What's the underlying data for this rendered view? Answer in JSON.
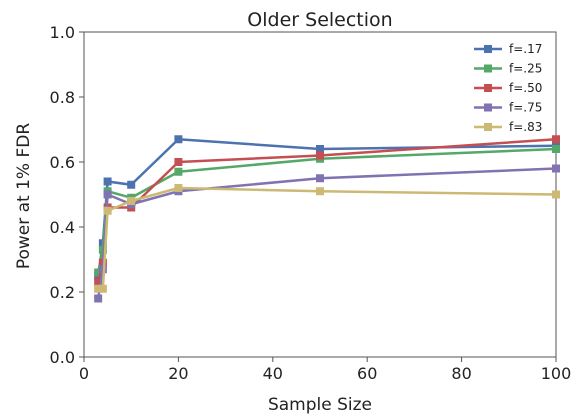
{
  "chart_data": {
    "type": "line",
    "title": "Older Selection",
    "xlabel": "Sample Size",
    "ylabel": "Power at 1% FDR",
    "xlim": [
      0,
      100
    ],
    "ylim": [
      0.0,
      1.0
    ],
    "xticks": [
      0,
      20,
      40,
      60,
      80,
      100
    ],
    "xtick_labels": [
      "0",
      "20",
      "40",
      "60",
      "80",
      "100"
    ],
    "yticks": [
      0.0,
      0.2,
      0.4,
      0.6,
      0.8,
      1.0
    ],
    "ytick_labels": [
      "0.0",
      "0.2",
      "0.4",
      "0.6",
      "0.8",
      "1.0"
    ],
    "grid": false,
    "legend_position": "top-right",
    "series": [
      {
        "name": "f=.17",
        "color": "#4c72b0",
        "points": [
          [
            3,
            0.25
          ],
          [
            4,
            0.35
          ],
          [
            5,
            0.54
          ],
          [
            10,
            0.53
          ],
          [
            20,
            0.67
          ],
          [
            50,
            0.64
          ],
          [
            100,
            0.65
          ]
        ]
      },
      {
        "name": "f=.25",
        "color": "#55a868",
        "points": [
          [
            3,
            0.26
          ],
          [
            4,
            0.33
          ],
          [
            5,
            0.51
          ],
          [
            10,
            0.49
          ],
          [
            20,
            0.57
          ],
          [
            50,
            0.61
          ],
          [
            100,
            0.64
          ]
        ]
      },
      {
        "name": "f=.50",
        "color": "#c44e52",
        "points": [
          [
            3,
            0.23
          ],
          [
            4,
            0.29
          ],
          [
            5,
            0.46
          ],
          [
            10,
            0.46
          ],
          [
            20,
            0.6
          ],
          [
            50,
            0.62
          ],
          [
            100,
            0.67
          ]
        ]
      },
      {
        "name": "f=.75",
        "color": "#8172b2",
        "points": [
          [
            3,
            0.18
          ],
          [
            4,
            0.27
          ],
          [
            5,
            0.5
          ],
          [
            10,
            0.47
          ],
          [
            20,
            0.51
          ],
          [
            50,
            0.55
          ],
          [
            100,
            0.58
          ]
        ]
      },
      {
        "name": "f=.83",
        "color": "#ccb974",
        "points": [
          [
            3,
            0.21
          ],
          [
            4,
            0.21
          ],
          [
            5,
            0.45
          ],
          [
            10,
            0.48
          ],
          [
            20,
            0.52
          ],
          [
            50,
            0.51
          ],
          [
            100,
            0.5
          ]
        ]
      }
    ]
  }
}
